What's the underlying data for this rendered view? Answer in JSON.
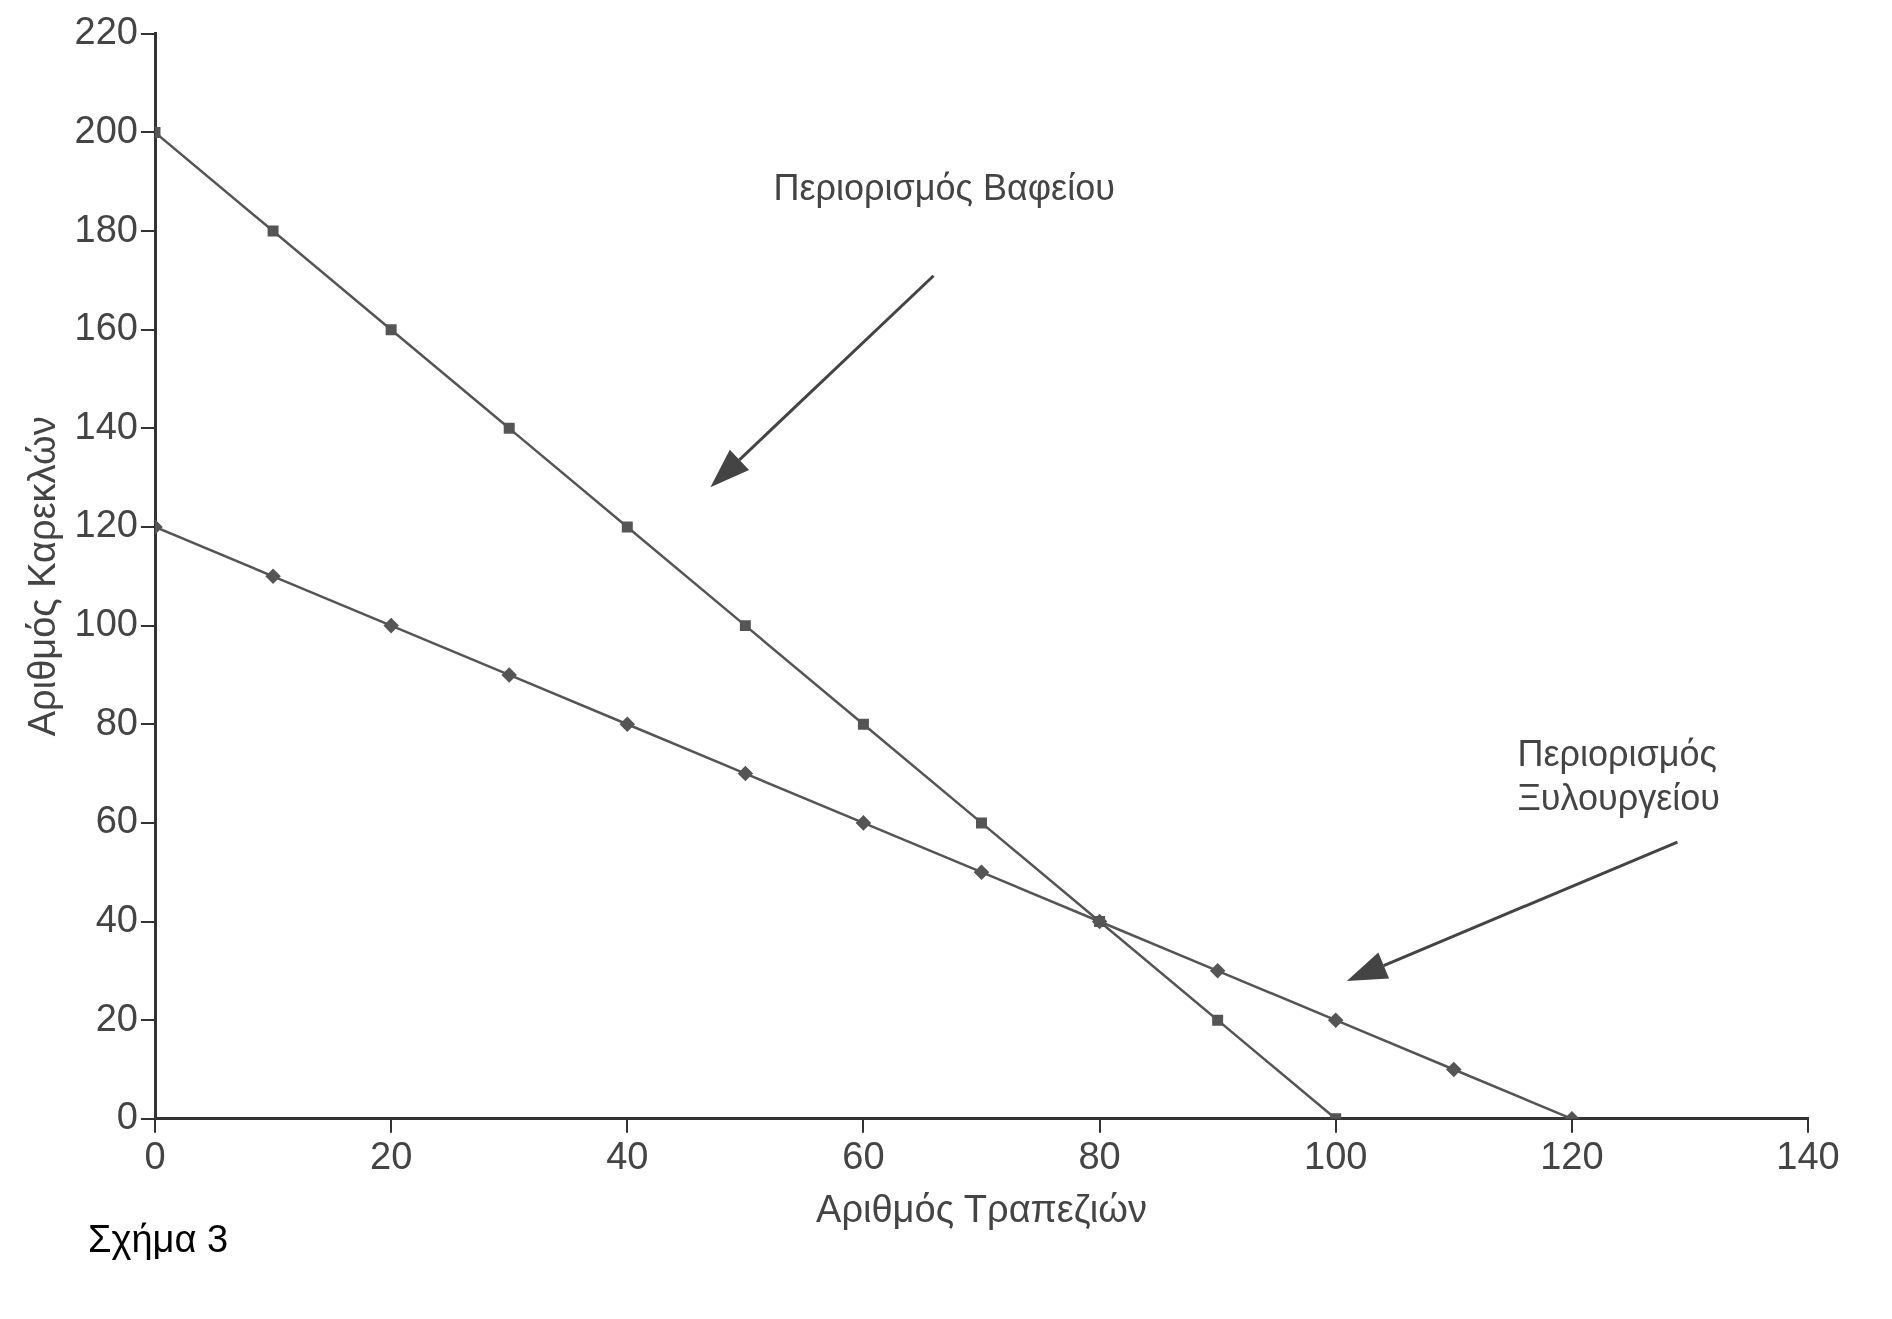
{
  "chart_data": {
    "type": "line",
    "xlabel": "Αριθμός Τραπεζιών",
    "ylabel": "Αριθμός Καρεκλών",
    "xlim": [
      0,
      140
    ],
    "xticks": [
      0,
      20,
      40,
      60,
      80,
      100,
      120,
      140
    ],
    "ylim": [
      0,
      220
    ],
    "yticks": [
      0,
      20,
      40,
      60,
      80,
      100,
      120,
      140,
      160,
      180,
      200,
      220
    ],
    "grid": false,
    "legend": false,
    "line_style": "solid",
    "series": [
      {
        "color": "#555555",
        "marker": "square",
        "x": [
          0,
          10,
          20,
          30,
          40,
          50,
          60,
          70,
          80,
          90,
          100
        ],
        "values": [
          200,
          180,
          160,
          140,
          120,
          100,
          80,
          60,
          40,
          20,
          0
        ]
      },
      {
        "color": "#555555",
        "marker": "diamond",
        "x": [
          0,
          10,
          20,
          30,
          40,
          50,
          60,
          70,
          80,
          90,
          100,
          110,
          120
        ],
        "values": [
          120,
          110,
          100,
          90,
          80,
          70,
          60,
          50,
          40,
          30,
          20,
          10,
          0
        ]
      }
    ],
    "annotations": [
      "Περιορισμός Βαφείου",
      "Περιορισμός Ξυλουργείου",
      "Σχήμα 3"
    ]
  }
}
